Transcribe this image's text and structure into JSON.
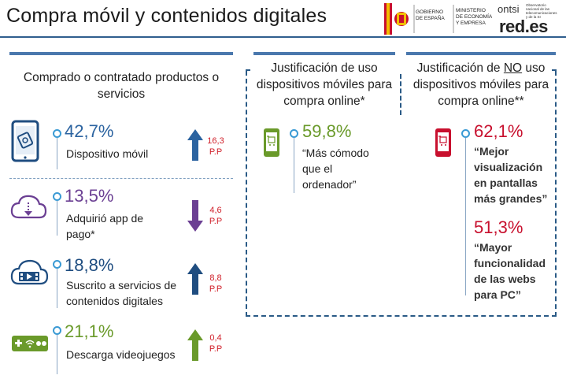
{
  "header": {
    "title": "Compra móvil y contenidos digitales",
    "logo_gob": {
      "line1": "GOBIERNO",
      "line2": "DE ESPAÑA",
      "line3": "MINISTERIO",
      "line4": "DE ECONOMÍA",
      "line5": "Y EMPRESA"
    },
    "logo_ontsi": {
      "word": "ontsi",
      "small1": "Observatorio",
      "small2": "nacional de las",
      "small3": "telecomunicaciones",
      "small4": "y de la SI",
      "brand": "red.es"
    }
  },
  "left": {
    "heading": "Comprado o contratado productos o servicios",
    "items": [
      {
        "pct": "42,7%",
        "label": "Dispositivo móvil",
        "pp_value": "16,3",
        "pp_unit": "P.P",
        "trend": "up",
        "icon": "tablet-icon",
        "color": "#2b63a0"
      },
      {
        "pct": "13,5%",
        "label": "Adquirió app de pago*",
        "pp_value": "4,6",
        "pp_unit": "P.P",
        "trend": "down",
        "icon": "cloud-download-icon",
        "color": "#6b3f93"
      },
      {
        "pct": "18,8%",
        "label": "Suscrito a servicios de contenidos digitales",
        "pp_value": "8,8",
        "pp_unit": "P.P",
        "trend": "up",
        "icon": "cloud-video-icon",
        "color": "#1f4d80"
      },
      {
        "pct": "21,1%",
        "label": "Descarga videojuegos",
        "pp_value": "0,4",
        "pp_unit": "P.P",
        "trend": "up",
        "icon": "gamepad-icon",
        "color": "#6a9a2a"
      }
    ]
  },
  "middle": {
    "heading": "Justificación de uso dispositivos móviles para compra online*",
    "pct": "59,8%",
    "label": "“Más cómodo que el ordenador”",
    "icon": "phone-cart-icon"
  },
  "right": {
    "heading_pre": "Justificación de ",
    "heading_underlined": "NO",
    "heading_post": " uso dispositivos móviles para compra online**",
    "items": [
      {
        "pct": "62,1%",
        "label": "“Mejor visualización en pantallas más grandes”"
      },
      {
        "pct": "51,3%",
        "label": "“Mayor funcionalidad de las webs para PC”"
      }
    ],
    "icon": "phone-cart-icon"
  },
  "colors": {
    "accent": "#4a78ad",
    "red": "#c8102e",
    "green": "#6a9a2a",
    "purple": "#6b3f93",
    "blue": "#2b63a0"
  }
}
